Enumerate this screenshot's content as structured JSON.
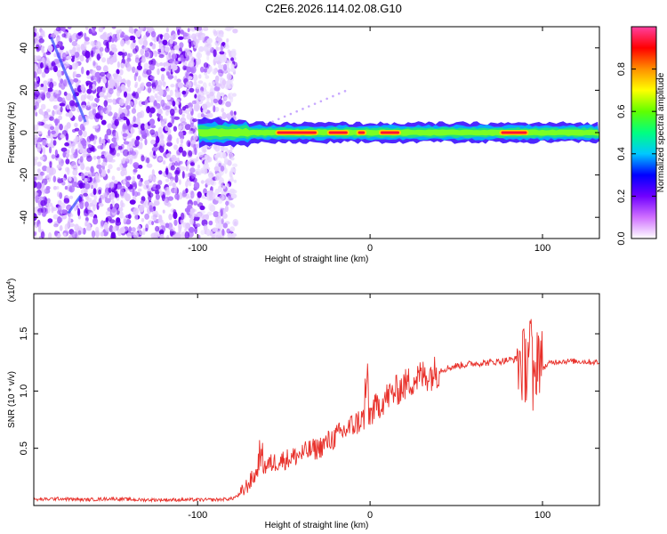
{
  "title": "C2E6.2026.114.02.08.G10",
  "chart_data": [
    {
      "type": "heatmap",
      "title": "C2E6.2026.114.02.08.G10",
      "xlabel": "Height of straight line (km)",
      "ylabel": "Frequency (Hz)",
      "xlim": [
        -195,
        133
      ],
      "ylim": [
        -50,
        50
      ],
      "xticks": [
        -100,
        0,
        100
      ],
      "xtick_labels": [
        "-100",
        "0",
        "100"
      ],
      "yticks": [
        -40,
        -20,
        0,
        20,
        40
      ],
      "ytick_labels": [
        "-40",
        "-20",
        "0",
        "20",
        "40"
      ],
      "colorbar": {
        "label": "Normalized spectral amplitude",
        "range": [
          0.0,
          1.0
        ],
        "ticks": [
          0.0,
          0.2,
          0.4,
          0.6,
          0.8
        ],
        "tick_labels": [
          "0.0",
          "0.2",
          "0.4",
          "0.6",
          "0.8"
        ],
        "colors": [
          "#ffffff",
          "#d070ff",
          "#7000ff",
          "#0000ff",
          "#00c8ff",
          "#00ff80",
          "#60ff00",
          "#ffff00",
          "#ff9000",
          "#ff0000",
          "#ff40a0"
        ]
      },
      "noise_region_x": [
        -195,
        -78
      ],
      "signal_band": {
        "center_freq": 0,
        "x_start": -100,
        "x_end": 133,
        "hot_segments": [
          [
            -55,
            -30
          ],
          [
            -25,
            -12
          ],
          [
            -8,
            -2
          ],
          [
            5,
            18
          ],
          [
            75,
            92
          ]
        ]
      }
    },
    {
      "type": "line",
      "xlabel": "Height of straight line (km)",
      "ylabel": "SNR (10 * v/v)",
      "y_multiplier_label": "(x10",
      "y_multiplier_exp": "4",
      "y_multiplier_close": ")",
      "xlim": [
        -195,
        133
      ],
      "ylim": [
        0,
        1.85
      ],
      "xticks": [
        -100,
        0,
        100
      ],
      "xtick_labels": [
        "-100",
        "0",
        "100"
      ],
      "yticks": [
        0.5,
        1.0,
        1.5
      ],
      "ytick_labels": [
        "0.5",
        "1.0",
        "1.5"
      ],
      "color": "#e8302a",
      "series": [
        {
          "name": "SNR",
          "x": [
            -195,
            -180,
            -165,
            -150,
            -135,
            -120,
            -105,
            -90,
            -80,
            -75,
            -70,
            -65,
            -60,
            -55,
            -50,
            -45,
            -40,
            -35,
            -30,
            -25,
            -20,
            -15,
            -10,
            -5,
            0,
            5,
            10,
            15,
            20,
            25,
            30,
            35,
            40,
            45,
            50,
            60,
            70,
            80,
            85,
            90,
            93,
            95,
            97,
            100,
            105,
            110,
            120,
            133
          ],
          "values": [
            0.05,
            0.06,
            0.05,
            0.06,
            0.05,
            0.05,
            0.05,
            0.05,
            0.06,
            0.1,
            0.2,
            0.3,
            0.35,
            0.38,
            0.4,
            0.42,
            0.45,
            0.48,
            0.5,
            0.55,
            0.6,
            0.65,
            0.7,
            0.75,
            0.8,
            0.88,
            0.95,
            1.0,
            1.05,
            1.1,
            1.13,
            1.15,
            1.18,
            1.2,
            1.22,
            1.24,
            1.25,
            1.27,
            1.28,
            1.2,
            1.5,
            0.9,
            1.4,
            1.2,
            1.25,
            1.26,
            1.26,
            1.25
          ]
        }
      ]
    }
  ]
}
